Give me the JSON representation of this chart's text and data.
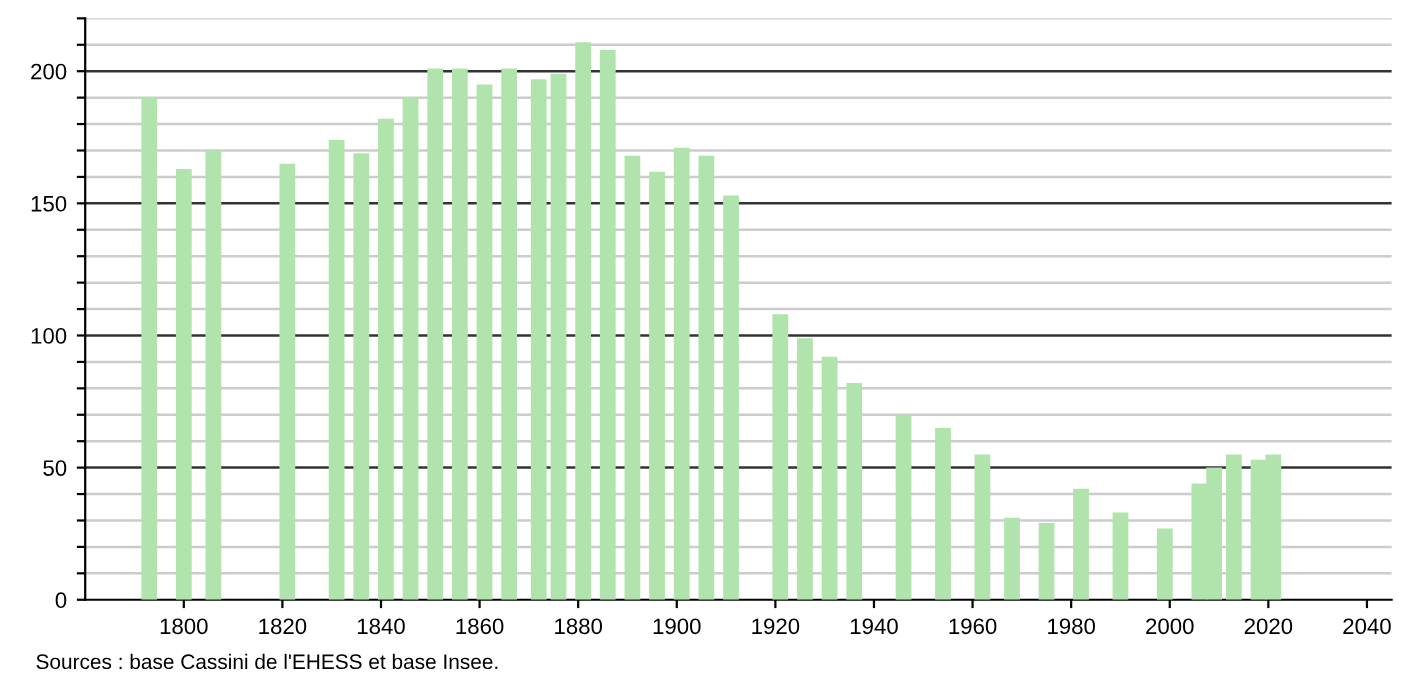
{
  "chart_data": {
    "type": "bar",
    "x": [
      1793,
      1800,
      1806,
      1821,
      1831,
      1836,
      1841,
      1846,
      1851,
      1856,
      1861,
      1866,
      1872,
      1876,
      1881,
      1886,
      1891,
      1896,
      1901,
      1906,
      1911,
      1921,
      1926,
      1931,
      1936,
      1946,
      1954,
      1962,
      1968,
      1975,
      1982,
      1990,
      1999,
      2006,
      2009,
      2013,
      2018,
      2021
    ],
    "values": [
      190,
      163,
      170,
      165,
      174,
      169,
      182,
      190,
      201,
      201,
      195,
      201,
      197,
      199,
      211,
      208,
      168,
      162,
      171,
      168,
      153,
      108,
      99,
      92,
      82,
      70,
      65,
      55,
      31,
      29,
      42,
      33,
      27,
      44,
      50,
      55,
      53,
      55
    ],
    "color": "#b0e4ac",
    "xlim": [
      1780,
      2045
    ],
    "xticks": [
      1800,
      1820,
      1840,
      1860,
      1880,
      1900,
      1920,
      1940,
      1960,
      1980,
      2000,
      2020,
      2040
    ],
    "ylim": [
      0,
      220
    ],
    "yticks": [
      0,
      {
        "value": 10,
        "label": null
      },
      {
        "value": 20,
        "label": null
      },
      {
        "value": 30,
        "label": null
      },
      {
        "value": 40,
        "label": null
      },
      50,
      {
        "value": 60,
        "label": null
      },
      {
        "value": 70,
        "label": null
      },
      {
        "value": 80,
        "label": null
      },
      {
        "value": 90,
        "label": null
      },
      100,
      {
        "value": 110,
        "label": null
      },
      {
        "value": 120,
        "label": null
      },
      {
        "value": 130,
        "label": null
      },
      {
        "value": 140,
        "label": null
      },
      150,
      {
        "value": 160,
        "label": null
      },
      {
        "value": 170,
        "label": null
      },
      {
        "value": 180,
        "label": null
      },
      {
        "value": 190,
        "label": null
      },
      200,
      {
        "value": 210,
        "label": null
      },
      {
        "value": 220,
        "label": null
      }
    ],
    "grid": "y",
    "annotations": [
      "Sources : base Cassini de l'EHESS et base Insee."
    ]
  }
}
